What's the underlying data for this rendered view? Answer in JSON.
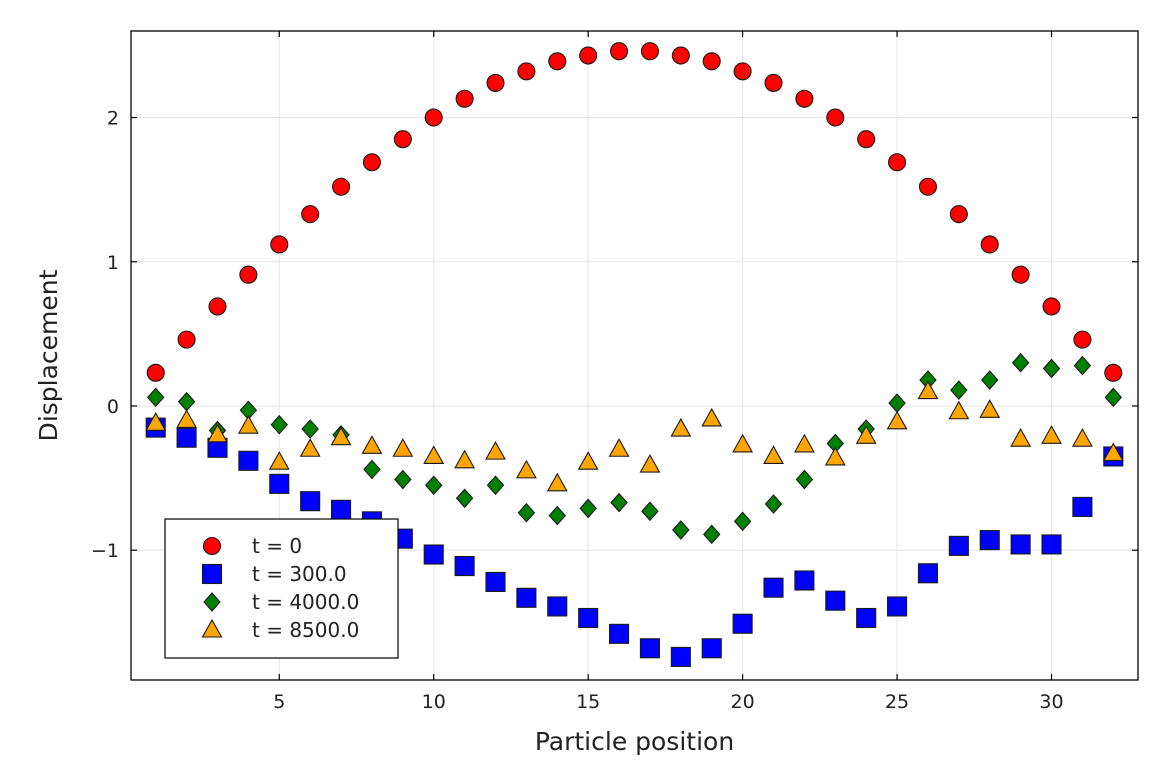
{
  "chart_data": {
    "type": "scatter",
    "title": "",
    "xlabel": "Particle position",
    "ylabel": "Displacement",
    "xlim": [
      0.2,
      32.8
    ],
    "ylim": [
      -1.9,
      2.6
    ],
    "xticks": [
      5,
      10,
      15,
      20,
      25,
      30
    ],
    "xtick_labels": [
      "5",
      "10",
      "15",
      "20",
      "25",
      "30"
    ],
    "yticks": [
      -1,
      0,
      1,
      2
    ],
    "ytick_labels": [
      "−1",
      "0",
      "1",
      "2"
    ],
    "grid": true,
    "legend_position": "bottom-left",
    "x": [
      1,
      2,
      3,
      4,
      5,
      6,
      7,
      8,
      9,
      10,
      11,
      12,
      13,
      14,
      15,
      16,
      17,
      18,
      19,
      20,
      21,
      22,
      23,
      24,
      25,
      26,
      27,
      28,
      29,
      30,
      31,
      32
    ],
    "series": [
      {
        "name": "t = 0",
        "marker": "circle",
        "color": "#ff0000",
        "values": [
          0.23,
          0.46,
          0.69,
          0.91,
          1.12,
          1.33,
          1.52,
          1.69,
          1.85,
          2.0,
          2.13,
          2.24,
          2.32,
          2.39,
          2.43,
          2.46,
          2.46,
          2.43,
          2.39,
          2.32,
          2.24,
          2.13,
          2.0,
          1.85,
          1.69,
          1.52,
          1.33,
          1.12,
          0.91,
          0.69,
          0.46,
          0.23
        ]
      },
      {
        "name": "t = 300.0",
        "marker": "square",
        "color": "#0000ff",
        "values": [
          -0.15,
          -0.22,
          -0.29,
          -0.38,
          -0.54,
          -0.66,
          -0.72,
          -0.8,
          -0.92,
          -1.03,
          -1.11,
          -1.22,
          -1.33,
          -1.39,
          -1.47,
          -1.58,
          -1.68,
          -1.74,
          -1.68,
          -1.51,
          -1.26,
          -1.21,
          -1.35,
          -1.47,
          -1.39,
          -1.16,
          -0.97,
          -0.93,
          -0.96,
          -0.96,
          -0.7,
          -0.35
        ]
      },
      {
        "name": "t = 4000.0",
        "marker": "diamond",
        "color": "#008000",
        "values": [
          0.06,
          0.03,
          -0.17,
          -0.03,
          -0.13,
          -0.16,
          -0.2,
          -0.44,
          -0.51,
          -0.55,
          -0.64,
          -0.55,
          -0.74,
          -0.76,
          -0.71,
          -0.67,
          -0.73,
          -0.86,
          -0.89,
          -0.8,
          -0.68,
          -0.51,
          -0.26,
          -0.16,
          0.02,
          0.18,
          0.11,
          0.18,
          0.3,
          0.26,
          0.28,
          0.06
        ]
      },
      {
        "name": "t = 8500.0",
        "marker": "triangle",
        "color": "#ffa500",
        "values": [
          -0.12,
          -0.1,
          -0.2,
          -0.14,
          -0.39,
          -0.3,
          -0.22,
          -0.28,
          -0.3,
          -0.35,
          -0.38,
          -0.32,
          -0.45,
          -0.54,
          -0.39,
          -0.3,
          -0.41,
          -0.16,
          -0.09,
          -0.27,
          -0.35,
          -0.27,
          -0.36,
          -0.21,
          -0.11,
          0.1,
          -0.04,
          -0.03,
          -0.23,
          -0.21,
          -0.23,
          -0.33
        ]
      }
    ]
  }
}
